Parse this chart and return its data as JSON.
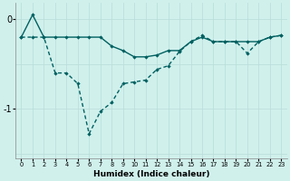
{
  "xlabel": "Humidex (Indice chaleur)",
  "x": [
    0,
    1,
    2,
    3,
    4,
    5,
    6,
    7,
    8,
    9,
    10,
    11,
    12,
    13,
    14,
    15,
    16,
    17,
    18,
    19,
    20,
    21,
    22,
    23
  ],
  "line1_y": [
    -0.2,
    0.05,
    -0.2,
    -0.2,
    -0.2,
    -0.2,
    -0.2,
    -0.2,
    -0.3,
    -0.35,
    -0.42,
    -0.42,
    -0.4,
    -0.35,
    -0.35,
    -0.25,
    -0.2,
    -0.25,
    -0.25,
    -0.25,
    -0.25,
    -0.25,
    -0.2,
    -0.18
  ],
  "line2_y": [
    -0.2,
    -0.2,
    -0.2,
    -0.6,
    -0.6,
    -0.72,
    -1.28,
    -1.03,
    -0.93,
    -0.72,
    -0.7,
    -0.68,
    -0.56,
    -0.52,
    -0.36,
    -0.25,
    -0.18,
    -0.25,
    -0.25,
    -0.25,
    -0.38,
    -0.25,
    -0.2,
    -0.18
  ],
  "line1_color": "#006060",
  "line2_color": "#006060",
  "bg_color": "#d0f0ec",
  "grid_color": "#b8ddd8",
  "ylim": [
    -1.55,
    0.18
  ],
  "yticks": [
    0,
    -1
  ],
  "xticks": [
    0,
    1,
    2,
    3,
    4,
    5,
    6,
    7,
    8,
    9,
    10,
    11,
    12,
    13,
    14,
    15,
    16,
    17,
    18,
    19,
    20,
    21,
    22,
    23
  ],
  "xtick_labels": [
    "0",
    "1",
    "2",
    "3",
    "4",
    "5",
    "6",
    "7",
    "8",
    "9",
    "10",
    "11",
    "12",
    "13",
    "14",
    "15",
    "16",
    "17",
    "18",
    "19",
    "20",
    "21",
    "22",
    "23"
  ],
  "xlabel_fontsize": 6.5,
  "ytick_fontsize": 7,
  "xtick_fontsize": 4.8
}
